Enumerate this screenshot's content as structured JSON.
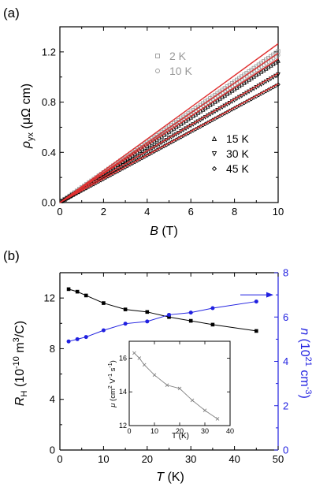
{
  "chart_data": [
    {
      "panel": "(a)",
      "type": "scatter",
      "xlabel": "B (T)",
      "ylabel": "ρyx (μΩ cm)",
      "xlim": [
        0,
        10
      ],
      "ylim": [
        0,
        1.4
      ],
      "xticks": [
        "0",
        "2",
        "4",
        "6",
        "8",
        "10"
      ],
      "yticks": [
        "0.0",
        "0.4",
        "0.8",
        "1.2"
      ],
      "legend_gray": [
        "2 K",
        "10 K"
      ],
      "legend_black": [
        "15 K",
        "30 K",
        "45 K"
      ],
      "series": [
        {
          "name": "2 K",
          "color": "#999999",
          "slope": 0.1205,
          "x_range": [
            0,
            10
          ]
        },
        {
          "name": "10 K",
          "color": "#999999",
          "slope": 0.1175,
          "x_range": [
            0,
            10
          ]
        },
        {
          "name": "15 K",
          "color": "#000000",
          "slope": 0.113,
          "x_range": [
            0,
            10
          ]
        },
        {
          "name": "30 K",
          "color": "#000000",
          "slope": 0.102,
          "x_range": [
            0,
            10
          ]
        },
        {
          "name": "45 K",
          "color": "#000000",
          "slope": 0.094,
          "x_range": [
            0,
            10
          ]
        }
      ],
      "fit_lines": {
        "color": "#e03030",
        "slopes": [
          0.1265,
          0.119,
          0.1145,
          0.103,
          0.0945
        ]
      }
    },
    {
      "panel": "(b)",
      "type": "line",
      "xlabel": "T (K)",
      "ylabel_left": "RH (10^-10 m³/C)",
      "ylabel_right": "n (10^21 cm^-3)",
      "xlim": [
        0,
        50
      ],
      "ylim_left": [
        0,
        14
      ],
      "ylim_right": [
        0,
        8
      ],
      "xticks": [
        "0",
        "10",
        "20",
        "30",
        "40",
        "50"
      ],
      "yticks_left": [
        "0",
        "4",
        "8",
        "12"
      ],
      "yticks_right": [
        "0",
        "2",
        "4",
        "6",
        "8"
      ],
      "series": [
        {
          "name": "RH",
          "axis": "left",
          "color": "#000000",
          "marker": "square",
          "x": [
            2,
            4,
            6,
            10,
            15,
            20,
            25,
            30,
            35,
            45
          ],
          "y": [
            12.7,
            12.5,
            12.2,
            11.6,
            11.1,
            10.9,
            10.5,
            10.2,
            9.9,
            9.4
          ]
        },
        {
          "name": "n",
          "axis": "right",
          "color": "#2020e0",
          "marker": "circle",
          "x": [
            2,
            4,
            6,
            10,
            15,
            20,
            25,
            30,
            35,
            45
          ],
          "y": [
            4.9,
            5.0,
            5.1,
            5.4,
            5.7,
            5.8,
            6.1,
            6.2,
            6.4,
            6.7
          ]
        }
      ],
      "inset": {
        "type": "line",
        "xlabel": "T (K)",
        "ylabel": "μ (cm² V⁻¹ s⁻¹)",
        "xlim": [
          0,
          40
        ],
        "ylim": [
          12,
          17
        ],
        "xticks": [
          "0",
          "10",
          "20",
          "30",
          "40"
        ],
        "yticks": [
          "12",
          "14",
          "16"
        ],
        "color": "#808080",
        "x": [
          2,
          4,
          6,
          10,
          15,
          20,
          25,
          30,
          35
        ],
        "y": [
          16.3,
          16.0,
          15.6,
          15.0,
          14.4,
          14.2,
          13.5,
          12.9,
          12.4
        ]
      }
    }
  ],
  "labels": {
    "panel_a": "(a)",
    "panel_b": "(b)",
    "a_x_main": "B",
    "a_x_unit": " (T)",
    "a_y_rho": "ρ",
    "a_y_sub": "yx",
    "a_y_unit": " (μΩ cm)",
    "b_x_main": "T",
    "b_x_unit": " (K)",
    "b_yl_main": "R",
    "b_yl_sub": "H",
    "b_yl_unit1": " (10",
    "b_yl_exp": "-10",
    "b_yl_unit2": " m",
    "b_yl_exp2": "3",
    "b_yl_unit3": "/C)",
    "b_yr_main": "n",
    "b_yr_unit1": " (10",
    "b_yr_exp": "21",
    "b_yr_unit2": " cm",
    "b_yr_exp2": "-3",
    "b_yr_unit3": ")",
    "inset_y_mu": "μ",
    "inset_y_unit1": " (cm",
    "inset_y_e1": "2",
    "inset_y_unit2": " V",
    "inset_y_e2": "-1",
    "inset_y_unit3": " s",
    "inset_y_e3": "-1",
    "inset_y_unit4": ")",
    "inset_x": "T (K)"
  },
  "colors": {
    "gray": "#999999",
    "black": "#000000",
    "red": "#e03030",
    "blue": "#2020e0",
    "inset": "#808080"
  }
}
